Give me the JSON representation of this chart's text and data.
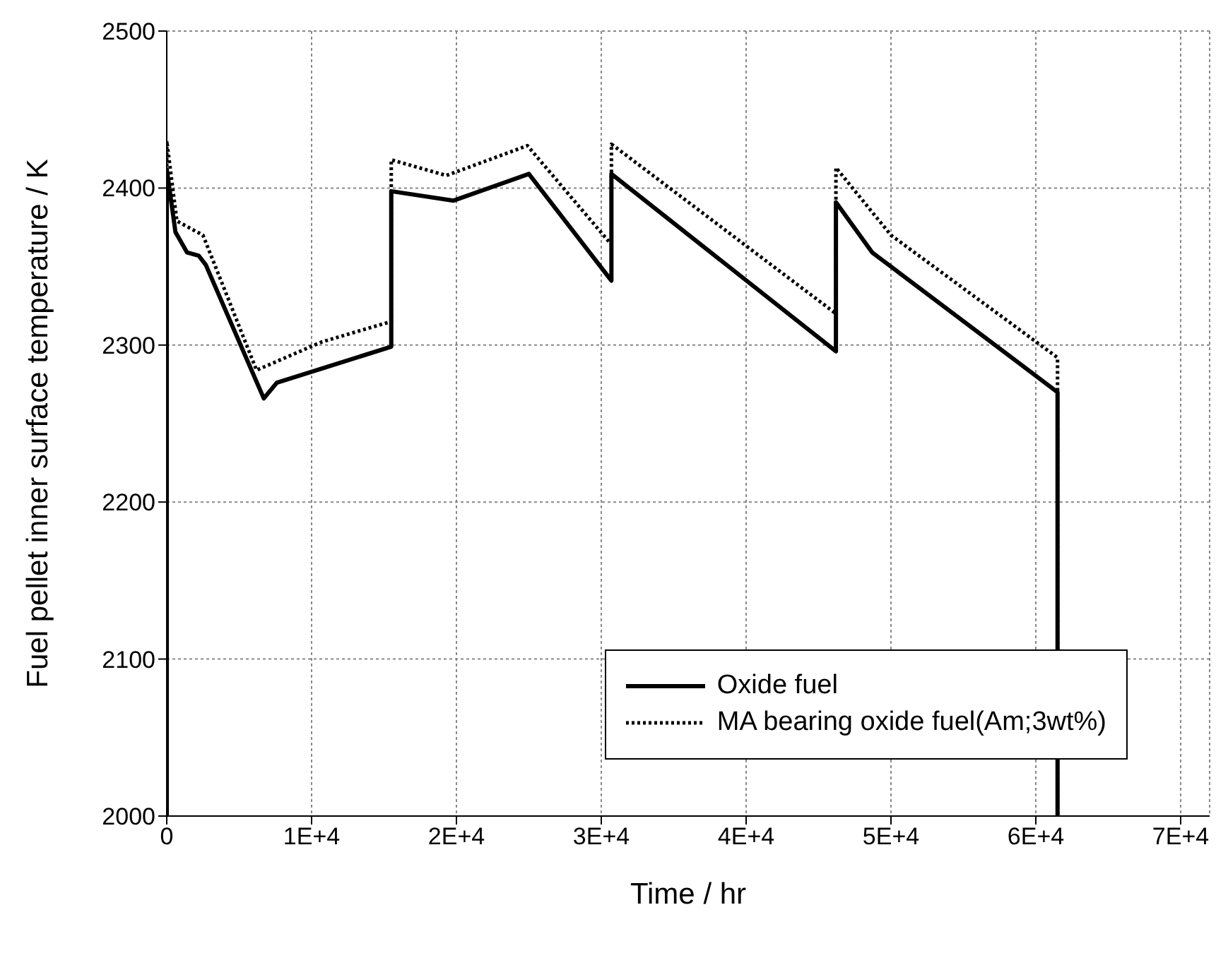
{
  "chart_data": {
    "type": "line",
    "xlabel": "Time / hr",
    "ylabel": "Fuel pellet inner surface temperature / K",
    "xlim": [
      0,
      72000
    ],
    "xticks": [
      0,
      {
        "value": 10000,
        "label": "1E+4"
      },
      {
        "value": 20000,
        "label": "2E+4"
      },
      {
        "value": 30000,
        "label": "3E+4"
      },
      {
        "value": 40000,
        "label": "4E+4"
      },
      {
        "value": 50000,
        "label": "5E+4"
      },
      {
        "value": 60000,
        "label": "6E+4"
      },
      {
        "value": 70000,
        "label": "7E+4"
      }
    ],
    "ylim": [
      2000,
      2500
    ],
    "yticks": [
      2000,
      2100,
      2200,
      2300,
      2400,
      2500
    ],
    "grid": true,
    "legend": "bottom right",
    "marker": "none",
    "series": [
      {
        "name": "Oxide fuel",
        "color": "#000000",
        "line_style": "solid",
        "x": [
          0,
          0,
          600,
          1400,
          2200,
          2700,
          6700,
          7600,
          10700,
          15500,
          15500,
          19800,
          25000,
          30700,
          30700,
          46200,
          46200,
          48700,
          50000,
          61500,
          61500
        ],
        "values": [
          2000,
          2412,
          2372,
          2359,
          2357,
          2351,
          2266,
          2276,
          2285,
          2299,
          2398,
          2392,
          2409,
          2341,
          2409,
          2296,
          2391,
          2359,
          2350,
          2270,
          2000
        ]
      },
      {
        "name": "MA bearing oxide fuel(Am;3wt%)",
        "color": "#000000",
        "line_style": "dotted",
        "x": [
          0,
          0,
          700,
          2500,
          6200,
          10700,
          15500,
          15500,
          19300,
          24900,
          30700,
          30700,
          46200,
          46200,
          50000,
          61500,
          61500
        ],
        "values": [
          2000,
          2430,
          2379,
          2370,
          2284,
          2302,
          2315,
          2418,
          2408,
          2427,
          2364,
          2428,
          2320,
          2413,
          2370,
          2292,
          2000
        ]
      }
    ]
  }
}
